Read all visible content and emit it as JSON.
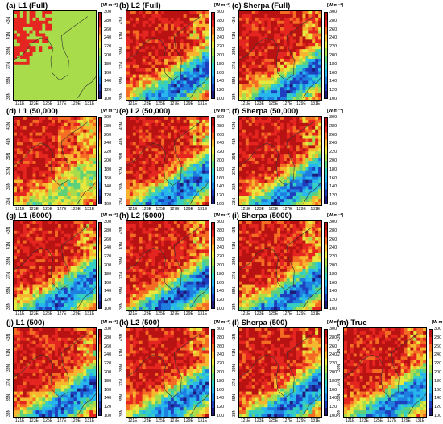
{
  "figure": {
    "panels": [
      {
        "id": "a",
        "title": "(a) L1 (Full)"
      },
      {
        "id": "b",
        "title": "(b) L2 (Full)"
      },
      {
        "id": "c",
        "title": "(c) Sherpa (Full)"
      },
      {
        "id": "d",
        "title": "(d) L1 (50,000)"
      },
      {
        "id": "e",
        "title": "(e) L2 (50,000)"
      },
      {
        "id": "f",
        "title": "(f) Sherpa (50,000)"
      },
      {
        "id": "g",
        "title": "(g) L1 (5000)"
      },
      {
        "id": "h",
        "title": "(h) L2 (5000)"
      },
      {
        "id": "i",
        "title": "(i) Sherpa (5000)"
      },
      {
        "id": "j",
        "title": "(j) L1 (500)"
      },
      {
        "id": "k",
        "title": "(k) L2 (500)"
      },
      {
        "id": "l",
        "title": "(l) Sherpa (500)"
      },
      {
        "id": "m",
        "title": "(m) True"
      }
    ]
  },
  "chart_data": {
    "type": "heatmap",
    "colorbar_unit": "[W m⁻²]",
    "colorbar_range": [
      100,
      300
    ],
    "colorbar_ticks": [
      300,
      280,
      260,
      240,
      220,
      200,
      180,
      160,
      140,
      120,
      100
    ],
    "colorbar_colors": [
      "#1e1b7a",
      "#1f3fbf",
      "#1e7fe0",
      "#28b6ef",
      "#36d0c2",
      "#5fd07a",
      "#a8dc4a",
      "#e7e73d",
      "#f8b52e",
      "#f46c23",
      "#e52620",
      "#b81212"
    ],
    "x_tick_labels": [
      "121E",
      "123E",
      "125E",
      "127E",
      "129E",
      "131E"
    ],
    "y_tick_labels": [
      "33N",
      "35N",
      "37N",
      "39N",
      "41N",
      "43N"
    ],
    "x_range": [
      120,
      132
    ],
    "y_range": [
      32,
      44
    ]
  }
}
